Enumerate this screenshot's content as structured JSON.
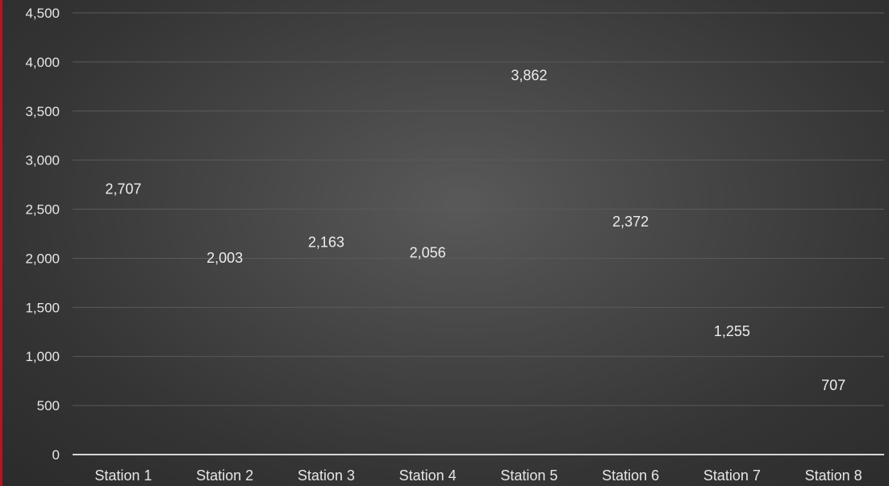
{
  "chart_data": {
    "type": "scatter",
    "title": "",
    "xlabel": "",
    "ylabel": "",
    "categories": [
      "Station 1",
      "Station 2",
      "Station 3",
      "Station 4",
      "Station 5",
      "Station 6",
      "Station 7",
      "Station 8"
    ],
    "series": [
      {
        "values": [
          2707,
          2003,
          2163,
          2056,
          3862,
          2372,
          1255,
          707
        ],
        "labels": [
          "2,707",
          "2,003",
          "2,163",
          "2,056",
          "3,862",
          "2,372",
          "1,255",
          "707"
        ]
      }
    ],
    "y_ticks": [
      "0",
      "500",
      "1,000",
      "1,500",
      "2,000",
      "2,500",
      "3,000",
      "3,500",
      "4,000",
      "4,500"
    ],
    "ylim": [
      0,
      4500
    ],
    "grid": true,
    "legend": "none",
    "markers_visible": false,
    "colors": {
      "background": "#3f3f3f",
      "text": "#e6e6e6",
      "gridline": "#5a5a5a",
      "axis_line": "#d6d6d6",
      "edge_accent": "#b01822"
    }
  }
}
